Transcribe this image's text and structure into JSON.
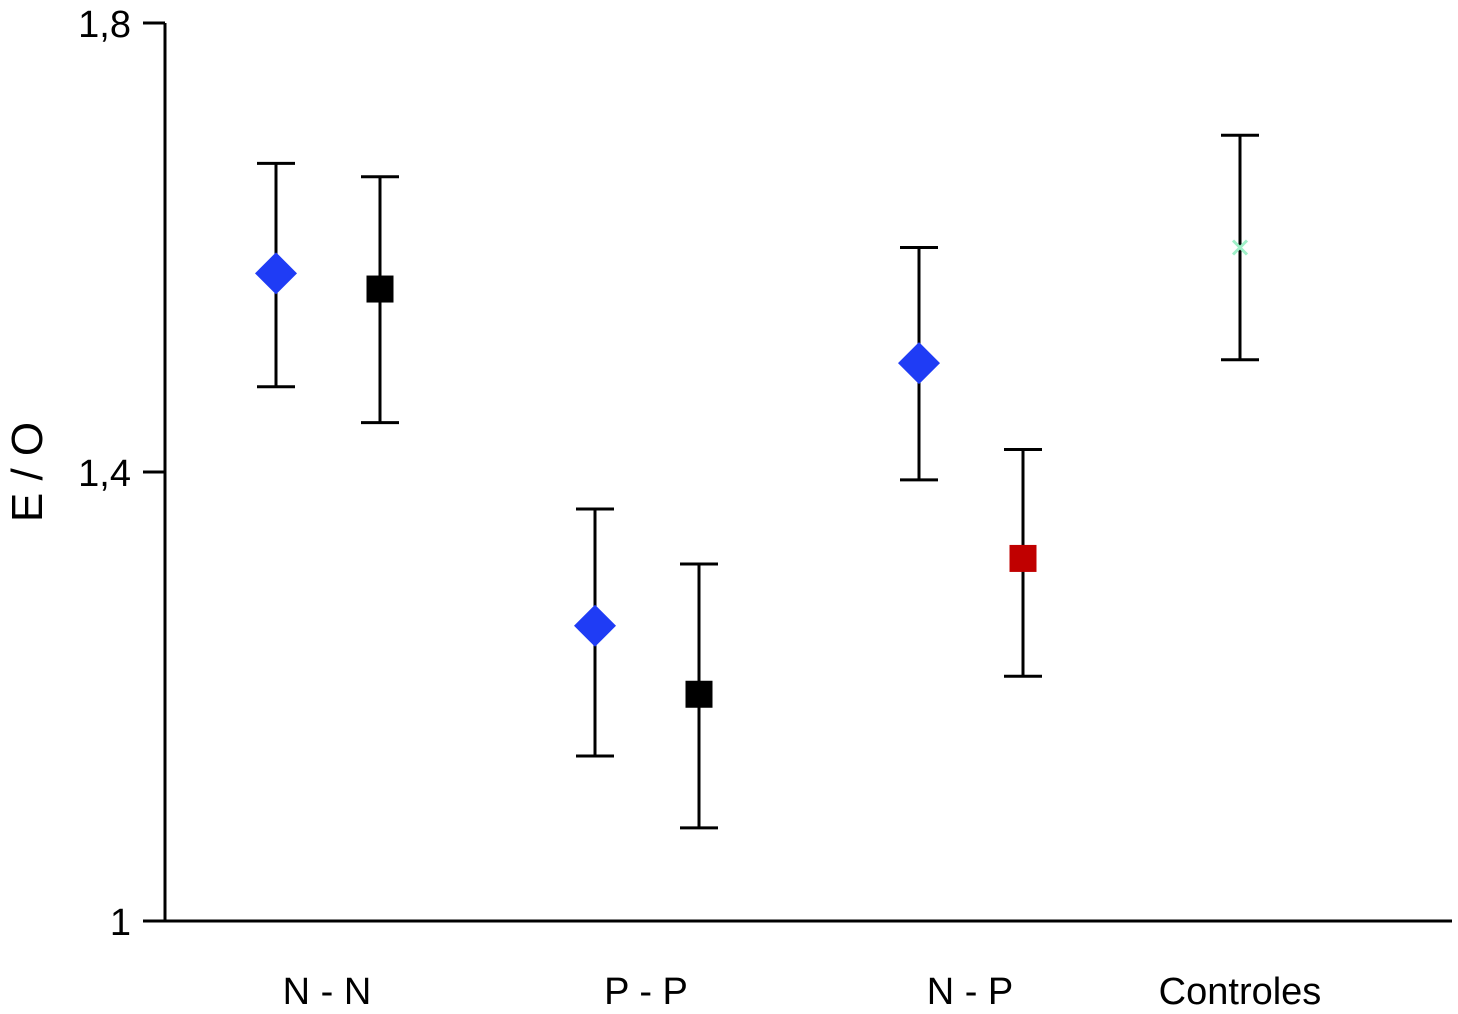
{
  "chart_data": {
    "type": "scatter",
    "title": "",
    "xlabel": "",
    "ylabel": "E / O",
    "ylim": [
      1.0,
      1.8
    ],
    "yticks": [
      {
        "value": 1.0,
        "label": "1"
      },
      {
        "value": 1.4,
        "label": "1,4"
      },
      {
        "value": 1.8,
        "label": "1,8"
      }
    ],
    "grid": false,
    "legend": "none",
    "categories": [
      {
        "label": "N - N",
        "x": 1
      },
      {
        "label": "P - P",
        "x": 2
      },
      {
        "label": "N - P",
        "x": 3
      },
      {
        "label": "Controles",
        "x": 4
      }
    ],
    "points": [
      {
        "category": "N - N",
        "slot": "left",
        "marker": "diamond",
        "color": "#1f3cf5",
        "y": 1.577,
        "low": 1.476,
        "high": 1.675
      },
      {
        "category": "N - N",
        "slot": "right",
        "marker": "square",
        "color": "#000000",
        "y": 1.563,
        "low": 1.444,
        "high": 1.663
      },
      {
        "category": "P - P",
        "slot": "left",
        "marker": "diamond",
        "color": "#1f3cf5",
        "y": 1.263,
        "low": 1.147,
        "high": 1.367
      },
      {
        "category": "P - P",
        "slot": "right",
        "marker": "square",
        "color": "#000000",
        "y": 1.202,
        "low": 1.083,
        "high": 1.318
      },
      {
        "category": "N - P",
        "slot": "left",
        "marker": "diamond",
        "color": "#1f3cf5",
        "y": 1.497,
        "low": 1.393,
        "high": 1.6
      },
      {
        "category": "N - P",
        "slot": "right",
        "marker": "square",
        "color": "#c00000",
        "y": 1.323,
        "low": 1.218,
        "high": 1.42
      },
      {
        "category": "Controles",
        "slot": "center",
        "marker": "cross",
        "color": "#9ff0c8",
        "y": 1.6,
        "low": 1.5,
        "high": 1.7
      }
    ]
  }
}
